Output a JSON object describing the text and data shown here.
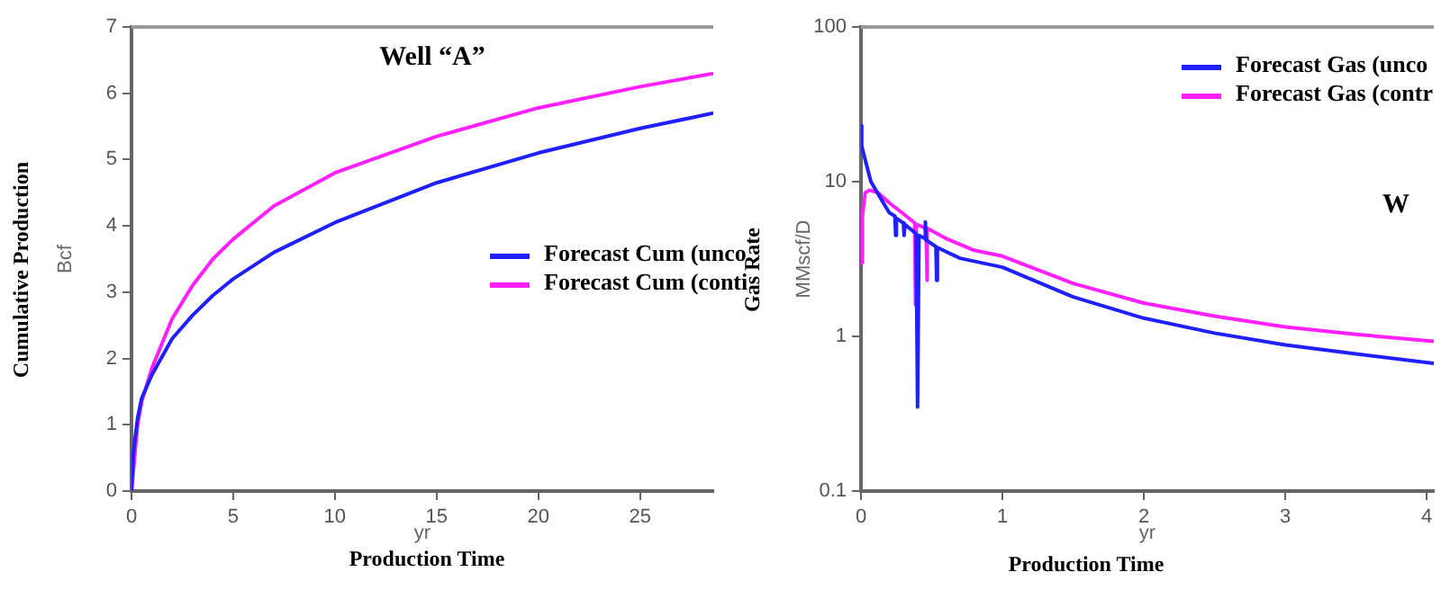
{
  "chart_data": [
    {
      "type": "line",
      "title": "Well “A”",
      "xlabel": "yr",
      "ylabel": "Bcf",
      "annotations": [
        "Cumulative Production",
        "Production Time"
      ],
      "xlim": [
        0,
        28.6
      ],
      "xticks": [
        0,
        5,
        10,
        15,
        20,
        25
      ],
      "ylim": [
        0,
        7
      ],
      "yticks": [
        0,
        1,
        2,
        3,
        4,
        5,
        6,
        7
      ],
      "grid": false,
      "legend": "right",
      "marker": "none",
      "line_style": "solid",
      "series": [
        {
          "name": "Forecast Cum (unco",
          "color": "#2020ff",
          "x": [
            0,
            0.1,
            0.3,
            0.5,
            1,
            2,
            3,
            4,
            5,
            7,
            10,
            15,
            20,
            25,
            28.6
          ],
          "values": [
            0,
            0.6,
            1.1,
            1.4,
            1.75,
            2.3,
            2.65,
            2.95,
            3.2,
            3.6,
            4.05,
            4.65,
            5.1,
            5.47,
            5.7
          ]
        },
        {
          "name": "Forecast Cum (conti",
          "color": "#ff20ff",
          "x": [
            0,
            0.3,
            0.5,
            1,
            2,
            3,
            4,
            5,
            7,
            10,
            15,
            20,
            25,
            28.6
          ],
          "values": [
            0,
            1.0,
            1.35,
            1.85,
            2.6,
            3.1,
            3.5,
            3.8,
            4.3,
            4.8,
            5.35,
            5.78,
            6.1,
            6.3
          ]
        }
      ]
    },
    {
      "type": "line",
      "title": "W",
      "xlabel": "yr",
      "ylabel": "MMscf/D",
      "annotations": [
        "Gas Rate",
        "Production Time"
      ],
      "xlim": [
        0,
        4.05
      ],
      "xticks": [
        0,
        1,
        2,
        3,
        4
      ],
      "ylim": [
        0.1,
        100
      ],
      "yticks": [
        0.1,
        1,
        10,
        100
      ],
      "log": "y",
      "grid": false,
      "legend": "top right",
      "marker": "none",
      "line_style": "solid",
      "series": [
        {
          "name": "Forecast Gas (unco",
          "color": "#2020ff",
          "x": [
            0,
            0.005,
            0.02,
            0.07,
            0.15,
            0.2,
            0.24,
            0.245,
            0.25,
            0.3,
            0.305,
            0.31,
            0.39,
            0.4,
            0.41,
            0.45,
            0.455,
            0.46,
            0.53,
            0.535,
            0.54,
            0.7,
            1,
            1.5,
            2,
            2.5,
            3,
            3.5,
            4.05
          ],
          "values": [
            23,
            17,
            15,
            10,
            7.5,
            6.3,
            6.0,
            4.5,
            5.8,
            5.4,
            4.5,
            5.3,
            4.6,
            0.35,
            4.5,
            4.3,
            5.5,
            4.2,
            3.8,
            2.3,
            3.75,
            3.2,
            2.8,
            1.8,
            1.31,
            1.05,
            0.88,
            0.77,
            0.67
          ]
        },
        {
          "name": "Forecast Gas (contr",
          "color": "#ff20ff",
          "x": [
            0,
            0.01,
            0.03,
            0.06,
            0.12,
            0.2,
            0.3,
            0.38,
            0.385,
            0.39,
            0.46,
            0.465,
            0.47,
            0.6,
            0.8,
            1,
            1.5,
            2,
            2.5,
            3,
            3.5,
            4.05
          ],
          "values": [
            3,
            6,
            8.5,
            8.8,
            8.5,
            7.3,
            6.2,
            5.4,
            1.6,
            5.3,
            5.0,
            2.3,
            5.0,
            4.3,
            3.6,
            3.3,
            2.2,
            1.64,
            1.35,
            1.15,
            1.03,
            0.93
          ]
        }
      ]
    }
  ]
}
